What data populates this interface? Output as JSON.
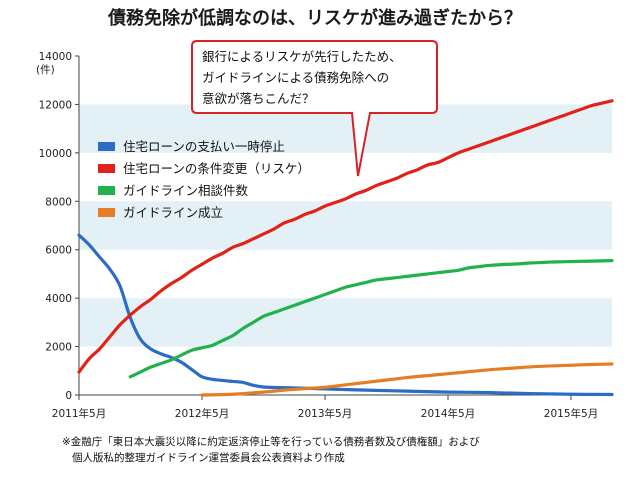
{
  "title": "債務免除が低調なのは、リスケが進み過ぎたから？",
  "chart_data": {
    "type": "line",
    "ylabel": "(件)",
    "ylim": [
      0,
      14000
    ],
    "yticks": [
      0,
      2000,
      4000,
      6000,
      8000,
      10000,
      12000,
      14000
    ],
    "xlim": [
      "2011-05",
      "2015-09"
    ],
    "xticks": [
      "2011年5月",
      "2012年5月",
      "2013年5月",
      "2014年5月",
      "2015年5月"
    ],
    "legend": "left-center",
    "series": [
      {
        "name": "住宅ローンの支払い一時停止",
        "color": "#2b6cc4",
        "points": [
          [
            "2011-05",
            6600
          ],
          [
            "2011-06",
            6200
          ],
          [
            "2011-07",
            5700
          ],
          [
            "2011-08",
            5200
          ],
          [
            "2011-09",
            4500
          ],
          [
            "2011-10",
            3200
          ],
          [
            "2011-11",
            2300
          ],
          [
            "2011-12",
            1900
          ],
          [
            "2012-01",
            1700
          ],
          [
            "2012-02",
            1550
          ],
          [
            "2012-03",
            1350
          ],
          [
            "2012-04",
            1050
          ],
          [
            "2012-05",
            750
          ],
          [
            "2012-06",
            650
          ],
          [
            "2012-07",
            600
          ],
          [
            "2012-08",
            560
          ],
          [
            "2012-09",
            520
          ],
          [
            "2012-10",
            400
          ],
          [
            "2012-11",
            330
          ],
          [
            "2012-12",
            310
          ],
          [
            "2013-03",
            280
          ],
          [
            "2013-05",
            250
          ],
          [
            "2013-09",
            200
          ],
          [
            "2014-01",
            160
          ],
          [
            "2014-05",
            120
          ],
          [
            "2014-09",
            100
          ],
          [
            "2015-01",
            60
          ],
          [
            "2015-05",
            30
          ],
          [
            "2015-09",
            20
          ]
        ]
      },
      {
        "name": "住宅ローンの条件変更（リスケ）",
        "color": "#e32119",
        "points": [
          [
            "2011-05",
            950
          ],
          [
            "2011-06",
            1500
          ],
          [
            "2011-07",
            1900
          ],
          [
            "2011-08",
            2400
          ],
          [
            "2011-09",
            2900
          ],
          [
            "2011-10",
            3300
          ],
          [
            "2011-11",
            3650
          ],
          [
            "2011-12",
            3950
          ],
          [
            "2012-01",
            4300
          ],
          [
            "2012-02",
            4600
          ],
          [
            "2012-03",
            4850
          ],
          [
            "2012-04",
            5150
          ],
          [
            "2012-05",
            5400
          ],
          [
            "2012-06",
            5650
          ],
          [
            "2012-07",
            5850
          ],
          [
            "2012-08",
            6100
          ],
          [
            "2012-09",
            6250
          ],
          [
            "2012-10",
            6450
          ],
          [
            "2012-11",
            6650
          ],
          [
            "2012-12",
            6850
          ],
          [
            "2013-01",
            7100
          ],
          [
            "2013-02",
            7250
          ],
          [
            "2013-03",
            7450
          ],
          [
            "2013-04",
            7600
          ],
          [
            "2013-05",
            7800
          ],
          [
            "2013-06",
            7950
          ],
          [
            "2013-07",
            8100
          ],
          [
            "2013-08",
            8300
          ],
          [
            "2013-09",
            8450
          ],
          [
            "2013-10",
            8650
          ],
          [
            "2013-11",
            8800
          ],
          [
            "2013-12",
            8950
          ],
          [
            "2014-01",
            9150
          ],
          [
            "2014-02",
            9300
          ],
          [
            "2014-03",
            9500
          ],
          [
            "2014-04",
            9600
          ],
          [
            "2014-05",
            9800
          ],
          [
            "2014-06",
            10000
          ],
          [
            "2014-07",
            10150
          ],
          [
            "2014-08",
            10300
          ],
          [
            "2014-09",
            10450
          ],
          [
            "2014-10",
            10600
          ],
          [
            "2014-11",
            10750
          ],
          [
            "2014-12",
            10900
          ],
          [
            "2015-01",
            11050
          ],
          [
            "2015-02",
            11200
          ],
          [
            "2015-03",
            11350
          ],
          [
            "2015-04",
            11500
          ],
          [
            "2015-05",
            11650
          ],
          [
            "2015-06",
            11800
          ],
          [
            "2015-07",
            11950
          ],
          [
            "2015-08",
            12050
          ],
          [
            "2015-09",
            12150
          ]
        ]
      },
      {
        "name": "ガイドライン相談件数",
        "color": "#22b24c",
        "points": [
          [
            "2011-10",
            750
          ],
          [
            "2011-11",
            950
          ],
          [
            "2011-12",
            1150
          ],
          [
            "2012-01",
            1300
          ],
          [
            "2012-02",
            1450
          ],
          [
            "2012-03",
            1650
          ],
          [
            "2012-04",
            1850
          ],
          [
            "2012-05",
            1950
          ],
          [
            "2012-06",
            2050
          ],
          [
            "2012-07",
            2250
          ],
          [
            "2012-08",
            2450
          ],
          [
            "2012-09",
            2750
          ],
          [
            "2012-10",
            3000
          ],
          [
            "2012-11",
            3250
          ],
          [
            "2012-12",
            3400
          ],
          [
            "2013-01",
            3550
          ],
          [
            "2013-02",
            3700
          ],
          [
            "2013-03",
            3850
          ],
          [
            "2013-04",
            4000
          ],
          [
            "2013-05",
            4150
          ],
          [
            "2013-06",
            4300
          ],
          [
            "2013-07",
            4450
          ],
          [
            "2013-08",
            4550
          ],
          [
            "2013-09",
            4650
          ],
          [
            "2013-10",
            4750
          ],
          [
            "2013-11",
            4800
          ],
          [
            "2013-12",
            4850
          ],
          [
            "2014-01",
            4900
          ],
          [
            "2014-02",
            4950
          ],
          [
            "2014-03",
            5000
          ],
          [
            "2014-04",
            5050
          ],
          [
            "2014-05",
            5100
          ],
          [
            "2014-06",
            5150
          ],
          [
            "2014-07",
            5250
          ],
          [
            "2014-08",
            5300
          ],
          [
            "2014-09",
            5350
          ],
          [
            "2014-10",
            5380
          ],
          [
            "2014-11",
            5400
          ],
          [
            "2014-12",
            5420
          ],
          [
            "2015-01",
            5450
          ],
          [
            "2015-02",
            5470
          ],
          [
            "2015-03",
            5490
          ],
          [
            "2015-04",
            5500
          ],
          [
            "2015-05",
            5510
          ],
          [
            "2015-06",
            5520
          ],
          [
            "2015-07",
            5530
          ],
          [
            "2015-08",
            5540
          ],
          [
            "2015-09",
            5550
          ]
        ]
      },
      {
        "name": "ガイドライン成立",
        "color": "#e57e22",
        "points": [
          [
            "2012-05",
            0
          ],
          [
            "2012-08",
            30
          ],
          [
            "2012-11",
            120
          ],
          [
            "2013-01",
            200
          ],
          [
            "2013-03",
            260
          ],
          [
            "2013-05",
            320
          ],
          [
            "2013-07",
            420
          ],
          [
            "2013-09",
            520
          ],
          [
            "2013-11",
            620
          ],
          [
            "2014-01",
            720
          ],
          [
            "2014-03",
            800
          ],
          [
            "2014-05",
            880
          ],
          [
            "2014-07",
            960
          ],
          [
            "2014-09",
            1040
          ],
          [
            "2014-11",
            1100
          ],
          [
            "2015-01",
            1160
          ],
          [
            "2015-03",
            1200
          ],
          [
            "2015-05",
            1230
          ],
          [
            "2015-07",
            1260
          ],
          [
            "2015-09",
            1280
          ]
        ]
      }
    ]
  },
  "callout": {
    "lines": [
      "銀行によるリスケが先行したため、",
      "ガイドラインによる債務免除への",
      "意欲が落ちこんだ？"
    ]
  },
  "footnote": {
    "lines": [
      "※金融庁「東日本大震災以降に約定返済停止等を行っている債務者数及び債権額」および",
      "個人版私的整理ガイドライン運営委員会公表資料より作成"
    ]
  }
}
